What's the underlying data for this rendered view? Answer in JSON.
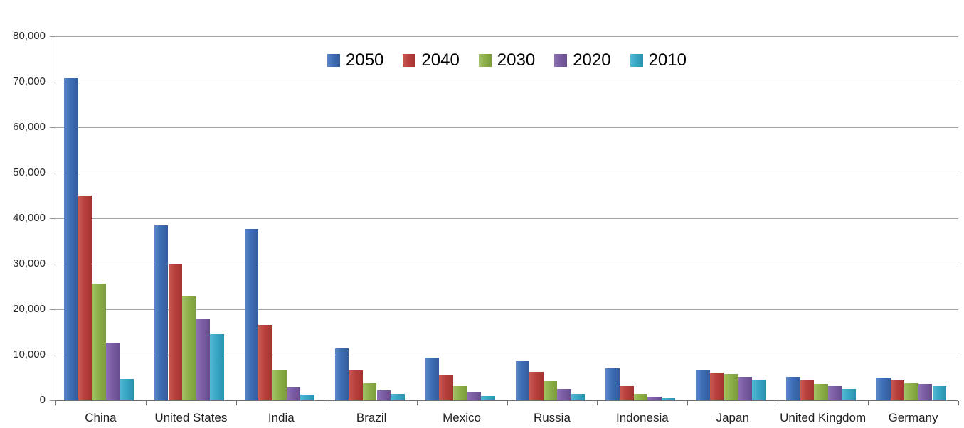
{
  "chart_data": {
    "type": "bar",
    "title": "",
    "xlabel": "",
    "ylabel": "",
    "categories": [
      "China",
      "United States",
      "India",
      "Brazil",
      "Mexico",
      "Russia",
      "Indonesia",
      "Japan",
      "United Kingdom",
      "Germany"
    ],
    "series": [
      {
        "name": "2050",
        "color": "#3e6db5",
        "color_light": "#5c88c8",
        "color_dark": "#345c9b",
        "values": [
          70710,
          38514,
          37668,
          11366,
          9340,
          8580,
          7010,
          6677,
          5133,
          5024
        ]
      },
      {
        "name": "2040",
        "color": "#b8403c",
        "color_light": "#c95a55",
        "color_dark": "#a33330",
        "values": [
          45022,
          29823,
          16510,
          6631,
          5471,
          6320,
          3199,
          6042,
          4344,
          4388
        ]
      },
      {
        "name": "2030",
        "color": "#8eb04a",
        "color_light": "#a4c266",
        "color_dark": "#7c9c3b",
        "values": [
          25610,
          22817,
          6683,
          3720,
          3068,
          4265,
          1479,
          5814,
          3595,
          3761
        ]
      },
      {
        "name": "2020",
        "color": "#7a5da3",
        "color_light": "#8d72b4",
        "color_dark": "#674e8d",
        "values": [
          12630,
          17978,
          2848,
          2194,
          1742,
          2554,
          752,
          5224,
          3101,
          3519
        ]
      },
      {
        "name": "2010",
        "color": "#39a7c6",
        "color_light": "#53b8d4",
        "color_dark": "#2b92ae",
        "values": [
          4667,
          14535,
          1256,
          1346,
          1009,
          1371,
          419,
          4604,
          2546,
          3083
        ]
      }
    ],
    "ylim": [
      0,
      80000
    ],
    "ytick_step": 10000,
    "ytick_labels": [
      "0",
      "10,000",
      "20,000",
      "30,000",
      "40,000",
      "50,000",
      "60,000",
      "70,000",
      "80,000"
    ],
    "grid": true,
    "legend_position": "top-center",
    "gridline_color": "#a6a6a6",
    "axis_color": "#6e6e6e",
    "text_color": "#2b2b2b"
  }
}
